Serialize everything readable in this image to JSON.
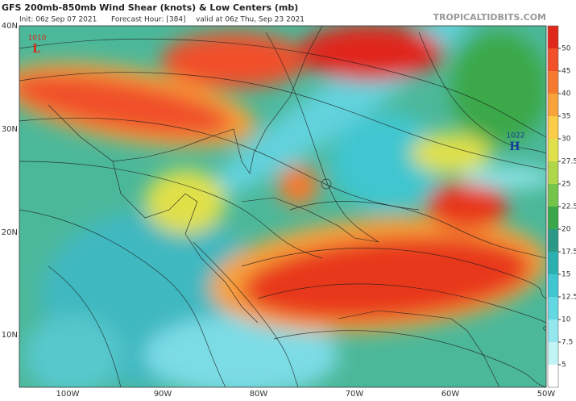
{
  "header": {
    "title": "GFS 200mb-850mb Wind Shear (knots) & Low Centers (mb)",
    "init": "Init: 06z Sep 07 2021",
    "forecast_hour": "Forecast Hour: [384]",
    "valid": "valid at 06z Thu, Sep 23 2021",
    "site": "TROPICALTIDBITS.COM"
  },
  "map": {
    "lat_labels": [
      "40N",
      "30N",
      "20N",
      "10N"
    ],
    "lon_labels": [
      "100W",
      "90W",
      "80W",
      "70W",
      "60W",
      "50W"
    ],
    "centers": [
      {
        "pressure": "1010",
        "symbol": "L",
        "color": "#d42a1a"
      },
      {
        "pressure": "1022",
        "symbol": "H",
        "color": "#1a3a9a"
      }
    ]
  },
  "colorbar": {
    "ticks": [
      50,
      45,
      40,
      35,
      30,
      27.5,
      25,
      22.5,
      20,
      17.5,
      15,
      12.5,
      10,
      7.5,
      5
    ],
    "colors": [
      "#e0281a",
      "#f0502a",
      "#f57a2e",
      "#f8a23a",
      "#fbcc48",
      "#e0e04a",
      "#b0d64a",
      "#74c44a",
      "#3aa84a",
      "#2a9a86",
      "#2ab0b0",
      "#40c6d0",
      "#62d8e2",
      "#92e8ee",
      "#c2f4f6",
      "#ffffff"
    ]
  }
}
